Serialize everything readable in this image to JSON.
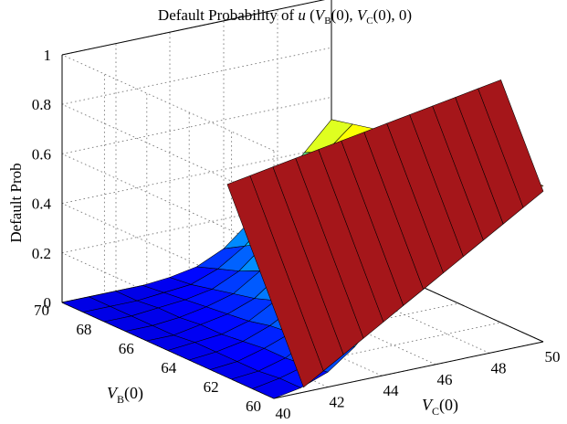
{
  "chart_data": {
    "type": "surface",
    "title": {
      "prefix": "Default Probability of ",
      "u": "u",
      "open": " (",
      "vb_sym": "V",
      "vb_sub": "B",
      "vb_arg": "(0), ",
      "vc_sym": "V",
      "vc_sub": "C",
      "vc_arg": "(0), 0)"
    },
    "zlabel": "Default Prob",
    "ylabel": {
      "sym": "V",
      "sub": "B",
      "arg": "(0)"
    },
    "xlabel": {
      "sym": "V",
      "sub": "C",
      "arg": "(0)"
    },
    "x_ticks": [
      "40",
      "42",
      "44",
      "46",
      "48",
      "50"
    ],
    "y_ticks": [
      "60",
      "62",
      "64",
      "66",
      "68",
      "70"
    ],
    "z_ticks": [
      "0",
      "0.2",
      "0.4",
      "0.6",
      "0.8",
      "1"
    ],
    "xlim": [
      40,
      50
    ],
    "ylim": [
      60,
      70
    ],
    "zlim": [
      0,
      1
    ],
    "grid": true,
    "colormap": "jet",
    "x": [
      40,
      41,
      42,
      43,
      44,
      45,
      46,
      47,
      48,
      49,
      50
    ],
    "y": [
      60,
      61,
      62,
      63,
      64,
      65,
      66,
      67,
      68,
      69,
      70
    ],
    "z": [
      [
        0.0,
        0.02,
        0.06,
        0.14,
        0.25,
        0.35,
        0.43,
        0.5,
        0.56,
        0.6,
        0.63
      ],
      [
        0.0,
        0.02,
        0.05,
        0.12,
        0.22,
        0.32,
        0.41,
        0.48,
        0.54,
        0.59,
        0.62
      ],
      [
        0.0,
        0.01,
        0.04,
        0.1,
        0.19,
        0.29,
        0.38,
        0.46,
        0.52,
        0.57,
        0.61
      ],
      [
        0.0,
        0.01,
        0.04,
        0.08,
        0.16,
        0.26,
        0.35,
        0.43,
        0.5,
        0.55,
        0.6
      ],
      [
        0.0,
        0.01,
        0.03,
        0.07,
        0.13,
        0.23,
        0.32,
        0.41,
        0.48,
        0.54,
        0.59
      ],
      [
        0.0,
        0.01,
        0.02,
        0.05,
        0.11,
        0.2,
        0.29,
        0.38,
        0.46,
        0.52,
        0.58
      ],
      [
        0.0,
        0.0,
        0.02,
        0.04,
        0.08,
        0.16,
        0.26,
        0.35,
        0.44,
        0.51,
        0.57
      ],
      [
        0.0,
        0.0,
        0.01,
        0.03,
        0.06,
        0.13,
        0.22,
        0.32,
        0.41,
        0.49,
        0.56
      ],
      [
        0.0,
        0.0,
        0.01,
        0.02,
        0.04,
        0.09,
        0.18,
        0.28,
        0.38,
        0.47,
        0.55
      ],
      [
        0.0,
        0.0,
        0.0,
        0.01,
        0.02,
        0.06,
        0.13,
        0.23,
        0.34,
        0.44,
        0.53
      ],
      [
        0.0,
        0.0,
        0.0,
        0.0,
        0.01,
        0.03,
        0.08,
        0.17,
        0.29,
        0.4,
        0.51
      ]
    ],
    "surface_edge": {
      "x": 41,
      "z_at_y60": 0.31,
      "z_at_y70": 0.7,
      "x_end": 50,
      "z_end_y60": 0.98,
      "z_end_y70": 0.84
    }
  }
}
